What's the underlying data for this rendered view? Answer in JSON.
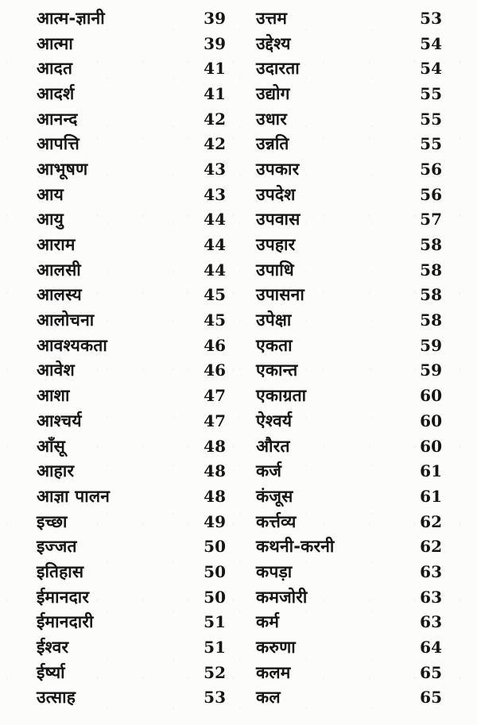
{
  "document": {
    "kind": "book-index-page",
    "columns": [
      {
        "entries": [
          {
            "term": "आत्म-ज्ञानी",
            "page": "39"
          },
          {
            "term": "आत्मा",
            "page": "39"
          },
          {
            "term": "आदत",
            "page": "41"
          },
          {
            "term": "आदर्श",
            "page": "41"
          },
          {
            "term": "आनन्द",
            "page": "42"
          },
          {
            "term": "आपत्ति",
            "page": "42"
          },
          {
            "term": "आभूषण",
            "page": "43"
          },
          {
            "term": "आय",
            "page": "43"
          },
          {
            "term": "आयु",
            "page": "44"
          },
          {
            "term": "आराम",
            "page": "44"
          },
          {
            "term": "आलसी",
            "page": "44"
          },
          {
            "term": "आलस्य",
            "page": "45"
          },
          {
            "term": "आलोचना",
            "page": "45"
          },
          {
            "term": "आवश्यकता",
            "page": "46"
          },
          {
            "term": "आवेश",
            "page": "46"
          },
          {
            "term": "आशा",
            "page": "47"
          },
          {
            "term": "आश्चर्य",
            "page": "47"
          },
          {
            "term": "आँसू",
            "page": "48"
          },
          {
            "term": "आहार",
            "page": "48"
          },
          {
            "term": "आज्ञा पालन",
            "page": "48"
          },
          {
            "term": "इच्छा",
            "page": "49"
          },
          {
            "term": "इज्जत",
            "page": "50"
          },
          {
            "term": "इतिहास",
            "page": "50"
          },
          {
            "term": "ईमानदार",
            "page": "50"
          },
          {
            "term": "ईमानदारी",
            "page": "51"
          },
          {
            "term": "ईश्वर",
            "page": "51"
          },
          {
            "term": "ईर्ष्या",
            "page": "52"
          },
          {
            "term": "उत्साह",
            "page": "53"
          }
        ]
      },
      {
        "entries": [
          {
            "term": "उत्तम",
            "page": "53"
          },
          {
            "term": "उद्देश्य",
            "page": "54"
          },
          {
            "term": "उदारता",
            "page": "54"
          },
          {
            "term": "उद्योग",
            "page": "55"
          },
          {
            "term": "उधार",
            "page": "55"
          },
          {
            "term": "उन्नति",
            "page": "55"
          },
          {
            "term": "उपकार",
            "page": "56"
          },
          {
            "term": "उपदेश",
            "page": "56"
          },
          {
            "term": "उपवास",
            "page": "57"
          },
          {
            "term": "उपहार",
            "page": "58"
          },
          {
            "term": "उपाधि",
            "page": "58"
          },
          {
            "term": "उपासना",
            "page": "58"
          },
          {
            "term": "उपेक्षा",
            "page": "58"
          },
          {
            "term": "एकता",
            "page": "59"
          },
          {
            "term": "एकान्त",
            "page": "59"
          },
          {
            "term": "एकाग्रता",
            "page": "60"
          },
          {
            "term": "ऐश्वर्य",
            "page": "60"
          },
          {
            "term": "औरत",
            "page": "60"
          },
          {
            "term": "कर्ज",
            "page": "61"
          },
          {
            "term": "कंजूस",
            "page": "61"
          },
          {
            "term": "कर्त्तव्य",
            "page": "62"
          },
          {
            "term": "कथनी-करनी",
            "page": "62"
          },
          {
            "term": "कपड़ा",
            "page": "63"
          },
          {
            "term": "कमजोरी",
            "page": "63"
          },
          {
            "term": "कर्म",
            "page": "63"
          },
          {
            "term": "करुणा",
            "page": "64"
          },
          {
            "term": "कलम",
            "page": "65"
          },
          {
            "term": "कल",
            "page": "65"
          }
        ]
      }
    ]
  }
}
